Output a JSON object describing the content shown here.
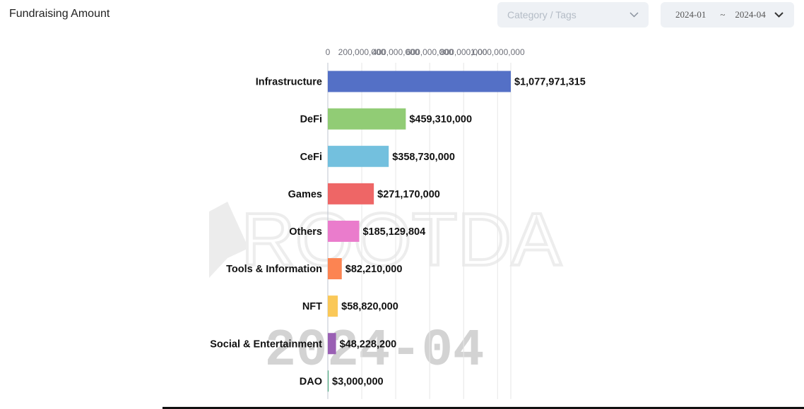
{
  "header": {
    "title": "Fundraising Amount",
    "category_placeholder": "Category / Tags",
    "date_from": "2024-01",
    "date_sep": "~",
    "date_to": "2024-04"
  },
  "watermark": {
    "brand": "ROOTDA",
    "period": "2024-04"
  },
  "chart_data": {
    "type": "bar",
    "orientation": "horizontal",
    "title": "Fundraising Amount",
    "categories": [
      "Infrastructure",
      "DeFi",
      "CeFi",
      "Games",
      "Others",
      "Tools & Information",
      "NFT",
      "Social & Entertainment",
      "DAO"
    ],
    "values": [
      1077971315,
      459310000,
      358730000,
      271170000,
      185129804,
      82210000,
      58820000,
      48228200,
      3000000
    ],
    "value_labels": [
      "$1,077,971,315",
      "$459,310,000",
      "$358,730,000",
      "$271,170,000",
      "$185,129,804",
      "$82,210,000",
      "$58,820,000",
      "$48,228,200",
      "$3,000,000"
    ],
    "colors": [
      "#5470c6",
      "#91cc75",
      "#73c0de",
      "#ee6666",
      "#ea7ccc",
      "#fc8452",
      "#fac858",
      "#9a60b4",
      "#3ba272"
    ],
    "xticks": [
      0,
      200000000,
      400000000,
      600000000,
      800000000,
      1000000000
    ],
    "xtick_labels": [
      "0",
      "200,000,000",
      "400,000,000",
      "600,000,000",
      "800,000,000",
      "1,000,000,000"
    ],
    "xlim": [
      0,
      1077971315
    ],
    "xlabel": "",
    "ylabel": "",
    "grid": true
  }
}
